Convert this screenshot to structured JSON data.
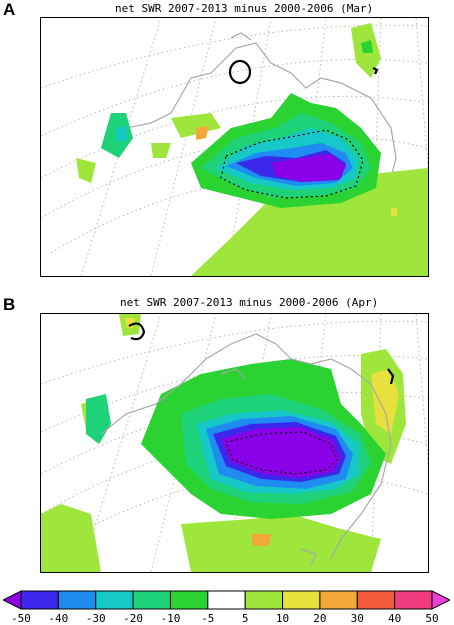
{
  "panels": [
    {
      "letter": "A",
      "title": "net SWR 2007-2013 minus 2000-2006 (Mar)"
    },
    {
      "letter": "B",
      "title": "net SWR 2007-2013 minus 2000-2006 (Apr)"
    }
  ],
  "colorbar": {
    "labels": [
      "-50",
      "-40",
      "-30",
      "-20",
      "-10",
      "-5",
      "5",
      "10",
      "20",
      "30",
      "40",
      "50"
    ],
    "colors": [
      "#8a00e8",
      "#3c28ea",
      "#1e8cf0",
      "#16c8c8",
      "#1ed27a",
      "#2ad232",
      "#ffffff",
      "#9ee63c",
      "#e8e03c",
      "#f2a838",
      "#f25a3c",
      "#f03c7c",
      "#e840d8"
    ]
  }
}
